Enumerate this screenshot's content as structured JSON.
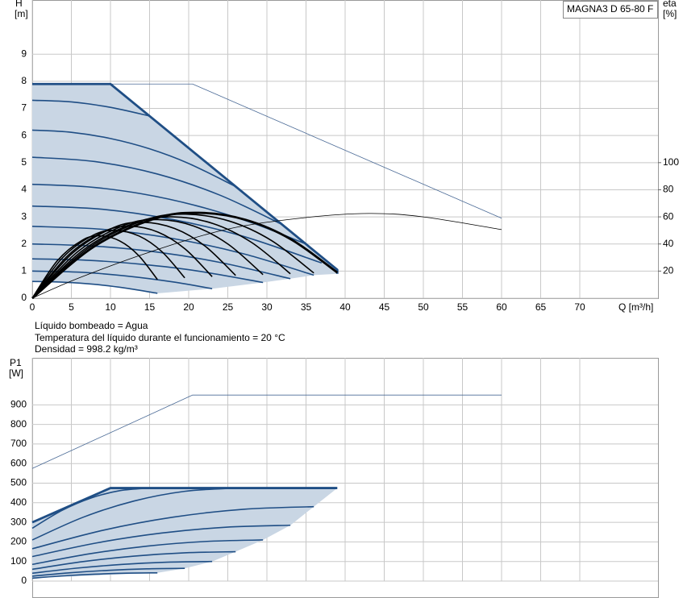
{
  "chart_data": [
    {
      "type": "line",
      "title": "MAGNA3 D 65-80 F",
      "ylabel": [
        "H",
        "[m]"
      ],
      "y2label": [
        "eta",
        "[%]"
      ],
      "xlabel": "Q [m³/h]",
      "xlim": [
        0,
        80
      ],
      "xticks": [
        0,
        5,
        10,
        15,
        20,
        25,
        30,
        35,
        40,
        45,
        50,
        55,
        60,
        65,
        70
      ],
      "ylim": [
        0,
        11
      ],
      "yticks": [
        0,
        1,
        2,
        3,
        4,
        5,
        6,
        7,
        8,
        9
      ],
      "y2lim": [
        0,
        220
      ],
      "y2ticks": [
        20,
        40,
        60,
        80,
        100
      ],
      "grid": true,
      "annotations": [
        "Líquido bombeado = Agua",
        "Temperatura del líquido durante el funcionamiento = 20 °C",
        "Densidad = 998.2 kg/m³"
      ],
      "series": [
        {
          "type": "area",
          "color": "#c9d6e4",
          "x": [
            0,
            10,
            39,
            39,
            36,
            33,
            29.5,
            23,
            16,
            12,
            8,
            4,
            0
          ],
          "values": [
            7.9,
            7.9,
            1.05,
            0.9,
            0.85,
            0.72,
            0.58,
            0.35,
            0.18,
            0.37,
            0.51,
            0.59,
            0.62
          ]
        },
        {
          "color": "#4a6a96",
          "style": "thin",
          "x": [
            0,
            20.5,
            60
          ],
          "values": [
            7.9,
            7.9,
            2.95
          ]
        },
        {
          "color": "#1f4e85",
          "style": "normal",
          "interpolation": "spline",
          "x": [
            0,
            5,
            10,
            15
          ],
          "values": [
            7.3,
            7.24,
            7.04,
            6.72
          ]
        },
        {
          "color": "#1f4e85",
          "style": "normal",
          "interpolation": "spline",
          "x": [
            0,
            5,
            10,
            15,
            20,
            26
          ],
          "values": [
            6.2,
            6.12,
            5.89,
            5.51,
            4.97,
            4.12
          ]
        },
        {
          "color": "#1f4e85",
          "style": "normal",
          "interpolation": "spline",
          "x": [
            0,
            8,
            16,
            24,
            32
          ],
          "values": [
            5.2,
            5.04,
            4.58,
            3.8,
            2.71
          ]
        },
        {
          "color": "#1f4e85",
          "style": "normal",
          "interpolation": "spline",
          "x": [
            0,
            7,
            14,
            21,
            28,
            35
          ],
          "values": [
            4.2,
            4.11,
            3.85,
            3.41,
            2.79,
            2.0
          ]
        },
        {
          "color": "#1f4e85",
          "style": "normal",
          "interpolation": "spline",
          "x": [
            0,
            9,
            18,
            27,
            37
          ],
          "values": [
            3.4,
            3.28,
            2.9,
            2.28,
            1.3
          ]
        },
        {
          "color": "#1f4e85",
          "style": "normal",
          "interpolation": "spline",
          "x": [
            0,
            9,
            18,
            27,
            36
          ],
          "values": [
            2.65,
            2.54,
            2.2,
            1.64,
            0.85
          ]
        },
        {
          "color": "#1f4e85",
          "style": "normal",
          "interpolation": "spline",
          "x": [
            0,
            8,
            16,
            24,
            33
          ],
          "values": [
            2.0,
            1.92,
            1.7,
            1.32,
            0.72
          ]
        },
        {
          "color": "#1f4e85",
          "style": "normal",
          "interpolation": "spline",
          "x": [
            0,
            7,
            14,
            21,
            29.5
          ],
          "values": [
            1.45,
            1.4,
            1.25,
            1.01,
            0.58
          ]
        },
        {
          "color": "#1f4e85",
          "style": "normal",
          "interpolation": "spline",
          "x": [
            0,
            6,
            12,
            18,
            23
          ],
          "values": [
            1.0,
            0.96,
            0.82,
            0.6,
            0.35
          ]
        },
        {
          "color": "#1f4e85",
          "style": "normal",
          "interpolation": "spline",
          "x": [
            0,
            4,
            8,
            12,
            16
          ],
          "values": [
            0.62,
            0.59,
            0.51,
            0.37,
            0.18
          ]
        },
        {
          "color": "#1f4e85",
          "style": "thick",
          "x": [
            0,
            10,
            39,
            39
          ],
          "values": [
            7.9,
            7.9,
            1.05,
            0.9
          ]
        },
        {
          "color": "#000000",
          "style": "thin",
          "interpolation": "spline",
          "axis": "y2",
          "x": [
            0,
            6,
            15,
            25,
            35,
            43,
            50,
            60
          ],
          "values": [
            0,
            15,
            34,
            51,
            59.5,
            62.5,
            60,
            50.6
          ]
        },
        {
          "color": "#000000",
          "style": "normal",
          "interpolation": "spline",
          "axis": "y2",
          "x": [
            0,
            3.2,
            6.4,
            8.72,
            11.2,
            13.6,
            16
          ],
          "values": [
            0,
            27.6,
            42.8,
            46,
            42.2,
            31.5,
            13.8
          ]
        },
        {
          "color": "#000000",
          "style": "normal",
          "interpolation": "spline",
          "axis": "y2",
          "x": [
            0,
            3.9,
            7.8,
            10.63,
            13.65,
            16.58,
            19.5
          ],
          "values": [
            0,
            30,
            46.5,
            50,
            45.9,
            34.3,
            15
          ]
        },
        {
          "color": "#000000",
          "style": "normal",
          "interpolation": "spline",
          "axis": "y2",
          "x": [
            0,
            4.6,
            9.2,
            12.54,
            16.1,
            19.55,
            23
          ],
          "values": [
            0,
            31.7,
            49.3,
            53,
            48.7,
            36.3,
            15.9
          ]
        },
        {
          "color": "#000000",
          "style": "normal",
          "interpolation": "spline",
          "axis": "y2",
          "x": [
            0,
            5.2,
            10.4,
            14.17,
            18.2,
            22.1,
            26
          ],
          "values": [
            0,
            33.5,
            52.1,
            56,
            51.4,
            38.4,
            16.8
          ]
        },
        {
          "color": "#000000",
          "style": "normal",
          "interpolation": "spline",
          "axis": "y2",
          "x": [
            0,
            5.9,
            11.8,
            16.08,
            20.65,
            25.08,
            29.5
          ],
          "values": [
            0,
            34.7,
            53.9,
            58,
            53.2,
            39.7,
            17.4
          ]
        },
        {
          "color": "#000000",
          "style": "normal",
          "interpolation": "spline",
          "axis": "y2",
          "x": [
            0,
            6.6,
            13.2,
            17.99,
            23.1,
            28.05,
            33
          ],
          "values": [
            0,
            35.9,
            55.8,
            60,
            55.1,
            41.1,
            18
          ]
        },
        {
          "color": "#000000",
          "style": "normal",
          "interpolation": "spline",
          "axis": "y2",
          "x": [
            0,
            7.2,
            14.4,
            19.62,
            25.2,
            30.6,
            36
          ],
          "values": [
            0,
            37.1,
            57.7,
            62,
            56.9,
            42.5,
            18.6
          ]
        },
        {
          "color": "#000000",
          "style": "thick",
          "interpolation": "spline",
          "axis": "y2",
          "x": [
            0,
            7.8,
            15.6,
            21.26,
            27.3,
            33.15,
            39
          ],
          "values": [
            0,
            37.7,
            58.6,
            63,
            57.8,
            43.2,
            18.9
          ]
        }
      ]
    },
    {
      "type": "line",
      "ylabel": [
        "P1",
        "[W]"
      ],
      "xlim": [
        0,
        80
      ],
      "ylim": [
        0,
        1140
      ],
      "yticks": [
        0,
        100,
        200,
        300,
        400,
        500,
        600,
        700,
        800,
        900
      ],
      "grid": true,
      "series": [
        {
          "type": "area",
          "color": "#c9d6e4",
          "x": [
            0,
            10,
            39,
            36,
            33,
            29.5,
            26,
            23,
            19.5,
            16,
            0
          ],
          "values": [
            300,
            475,
            475,
            380,
            285,
            210,
            150,
            100,
            65,
            42,
            15
          ]
        },
        {
          "color": "#4a6a96",
          "style": "thin",
          "x": [
            0,
            20.5,
            60
          ],
          "values": [
            575,
            950,
            950
          ]
        },
        {
          "color": "#1f4e85",
          "style": "normal",
          "interpolation": "spline",
          "x": [
            0,
            3.75,
            7.5,
            11.25,
            15
          ],
          "values": [
            270,
            359.7,
            423.8,
            462.2,
            475
          ]
        },
        {
          "color": "#1f4e85",
          "style": "normal",
          "interpolation": "spline",
          "x": [
            0,
            6.5,
            13,
            19.5,
            26
          ],
          "values": [
            210,
            325.9,
            408.8,
            458.4,
            475
          ]
        },
        {
          "color": "#1f4e85",
          "style": "normal",
          "interpolation": "spline",
          "x": [
            0,
            9,
            18,
            27,
            36
          ],
          "values": [
            165,
            259.1,
            326.3,
            366.6,
            380
          ]
        },
        {
          "color": "#1f4e85",
          "style": "normal",
          "interpolation": "spline",
          "x": [
            0,
            8.25,
            16.5,
            24.75,
            33
          ],
          "values": [
            125,
            195,
            245,
            275,
            285
          ]
        },
        {
          "color": "#1f4e85",
          "style": "normal",
          "interpolation": "spline",
          "x": [
            0,
            7.375,
            14.75,
            22.125,
            29.5
          ],
          "values": [
            85,
            139.7,
            178.8,
            202.2,
            210
          ]
        },
        {
          "color": "#1f4e85",
          "style": "normal",
          "interpolation": "spline",
          "x": [
            0,
            6.5,
            13,
            19.5,
            26
          ],
          "values": [
            60,
            99.4,
            127.5,
            144.4,
            150
          ]
        },
        {
          "color": "#1f4e85",
          "style": "normal",
          "interpolation": "spline",
          "x": [
            0,
            5.75,
            11.5,
            17.25,
            23
          ],
          "values": [
            40,
            66.3,
            85,
            96.3,
            100
          ]
        },
        {
          "color": "#1f4e85",
          "style": "normal",
          "interpolation": "spline",
          "x": [
            0,
            4.875,
            9.75,
            14.625,
            19.5
          ],
          "values": [
            25,
            42.5,
            55,
            62.5,
            65
          ]
        },
        {
          "color": "#1f4e85",
          "style": "normal",
          "interpolation": "spline",
          "x": [
            0,
            4,
            8,
            12,
            16
          ],
          "values": [
            15,
            26.8,
            35.3,
            40.3,
            42
          ]
        },
        {
          "color": "#1f4e85",
          "style": "thick",
          "x": [
            0,
            10,
            39
          ],
          "values": [
            300,
            475,
            475
          ]
        }
      ]
    }
  ]
}
